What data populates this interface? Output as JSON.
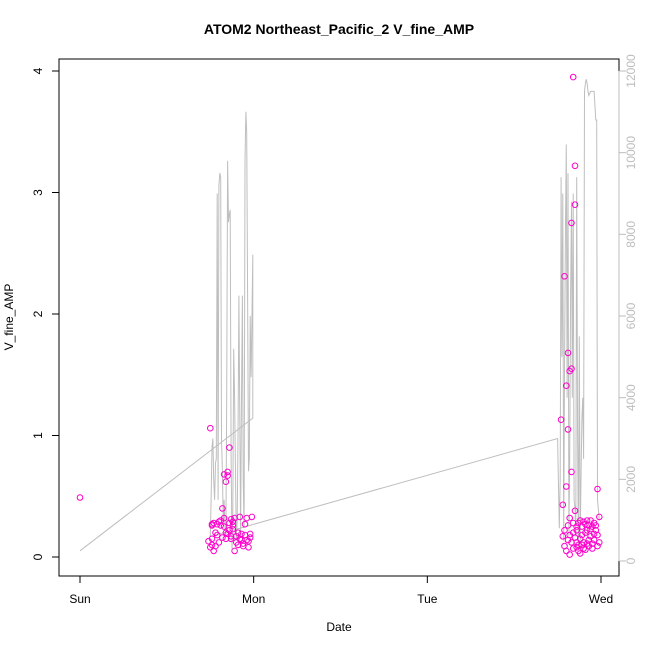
{
  "chart_data": {
    "type": "scatter",
    "title": "ATOM2 Northeast_Pacific_2 V_fine_AMP",
    "xlabel": "Date",
    "ylabel": "V_fine_AMP",
    "xlim": [
      0,
      3.1
    ],
    "ylim": [
      0,
      4.1
    ],
    "x_ticks": [
      {
        "value": 0,
        "label": "Sun"
      },
      {
        "value": 1,
        "label": "Mon"
      },
      {
        "value": 2,
        "label": "Tue"
      },
      {
        "value": 3,
        "label": "Wed"
      }
    ],
    "y_ticks": [
      0,
      1,
      2,
      3,
      4
    ],
    "y2_ticks": [
      0,
      2000,
      4000,
      6000,
      8000,
      10000,
      12000
    ],
    "y2lim": [
      0,
      12200
    ],
    "colors": {
      "points": "#ff00cc",
      "line": "#bebebe",
      "right_axis": "#bdbdbd"
    },
    "series": [
      {
        "type": "points",
        "x": [
          0.0,
          0.74,
          0.75,
          0.75,
          0.76,
          0.76,
          0.76,
          0.76,
          0.77,
          0.77,
          0.78,
          0.78,
          0.79,
          0.79,
          0.8,
          0.8,
          0.81,
          0.81,
          0.82,
          0.82,
          0.83,
          0.83,
          0.83,
          0.84,
          0.84,
          0.84,
          0.85,
          0.85,
          0.85,
          0.86,
          0.86,
          0.86,
          0.87,
          0.87,
          0.87,
          0.88,
          0.88,
          0.88,
          0.89,
          0.89,
          0.9,
          0.9,
          0.91,
          0.91,
          0.92,
          0.92,
          0.93,
          0.93,
          0.94,
          0.94,
          0.95,
          0.95,
          0.96,
          0.96,
          0.97,
          0.97,
          0.98,
          0.98,
          0.99,
          2.77,
          2.78,
          2.78,
          2.79,
          2.79,
          2.79,
          2.8,
          2.8,
          2.8,
          2.81,
          2.81,
          2.81,
          2.81,
          2.82,
          2.82,
          2.82,
          2.82,
          2.83,
          2.83,
          2.83,
          2.83,
          2.84,
          2.84,
          2.84,
          2.84,
          2.85,
          2.85,
          2.85,
          2.85,
          2.86,
          2.86,
          2.86,
          2.86,
          2.87,
          2.87,
          2.87,
          2.88,
          2.88,
          2.88,
          2.89,
          2.89,
          2.89,
          2.9,
          2.9,
          2.9,
          2.91,
          2.91,
          2.91,
          2.92,
          2.92,
          2.92,
          2.93,
          2.93,
          2.93,
          2.94,
          2.94,
          2.94,
          2.95,
          2.95,
          2.95,
          2.96,
          2.96,
          2.96,
          2.97,
          2.97,
          2.98,
          2.98,
          2.98,
          2.99,
          2.99
        ],
        "y": [
          0.49,
          0.13,
          1.06,
          0.08,
          0.27,
          0.15,
          0.1,
          0.26,
          0.28,
          0.05,
          0.2,
          0.09,
          0.18,
          0.27,
          0.29,
          0.12,
          0.26,
          0.3,
          0.4,
          0.16,
          0.32,
          0.25,
          0.68,
          0.62,
          0.2,
          0.15,
          0.7,
          0.67,
          0.19,
          0.22,
          0.28,
          0.9,
          0.31,
          0.17,
          0.15,
          0.26,
          0.29,
          0.23,
          0.05,
          0.32,
          0.12,
          0.17,
          0.1,
          0.2,
          0.33,
          0.15,
          0.14,
          0.19,
          0.11,
          0.09,
          0.18,
          0.27,
          0.14,
          0.32,
          0.08,
          0.13,
          0.16,
          0.19,
          0.33,
          1.13,
          0.43,
          0.17,
          2.31,
          0.22,
          0.09,
          1.41,
          0.58,
          0.05,
          1.68,
          1.05,
          0.14,
          0.26,
          1.53,
          0.32,
          0.02,
          0.18,
          2.75,
          1.55,
          0.7,
          0.12,
          3.95,
          0.28,
          0.07,
          0.2,
          2.9,
          3.22,
          0.38,
          0.16,
          0.25,
          0.12,
          0.08,
          0.22,
          0.1,
          0.28,
          0.05,
          0.3,
          0.15,
          0.03,
          0.25,
          0.18,
          0.1,
          0.29,
          0.12,
          0.07,
          0.2,
          0.27,
          0.06,
          0.3,
          0.22,
          0.11,
          0.14,
          0.26,
          0.09,
          0.3,
          0.17,
          0.23,
          0.11,
          0.25,
          0.07,
          0.19,
          0.28,
          0.14,
          0.26,
          0.22,
          0.09,
          0.56,
          0.18,
          0.33,
          0.12
        ]
      },
      {
        "type": "line",
        "x": [
          0.0,
          0.995,
          0.995,
          0.985,
          0.98,
          0.975,
          0.97,
          0.965,
          0.96,
          0.955,
          0.95,
          0.945,
          0.94,
          0.935,
          0.93,
          0.925,
          0.92,
          0.915,
          0.91,
          0.905,
          0.9,
          0.89,
          0.885,
          0.88,
          0.875,
          0.87,
          0.865,
          0.86,
          0.855,
          0.85,
          0.845,
          0.84,
          0.835,
          0.83,
          0.825,
          0.82,
          0.815,
          0.81,
          0.805,
          0.8,
          0.795,
          0.79,
          0.785,
          0.78,
          0.775,
          0.77,
          0.765,
          0.76,
          0.755,
          0.75,
          2.75,
          2.76,
          2.765,
          2.77,
          2.775,
          2.78,
          2.785,
          2.79,
          2.795,
          2.8,
          2.805,
          2.81,
          2.815,
          2.82,
          2.825,
          2.83,
          2.835,
          2.84,
          2.845,
          2.85,
          2.855,
          2.86,
          2.865,
          2.87,
          2.875,
          2.88,
          2.885,
          2.89,
          2.895,
          2.9,
          2.905,
          2.91,
          2.915,
          2.92,
          2.925,
          2.93,
          2.94,
          2.95,
          2.96,
          2.97,
          2.975,
          2.98,
          2.99
        ],
        "y": [
          250,
          3500,
          7500,
          4500,
          6000,
          2500,
          2200,
          6500,
          10500,
          11000,
          9800,
          800,
          2000,
          6500,
          4000,
          600,
          3500,
          6500,
          3000,
          1000,
          500,
          4000,
          5200,
          1200,
          300,
          2600,
          8600,
          8500,
          8300,
          9800,
          4000,
          600,
          800,
          1500,
          900,
          2200,
          3000,
          9400,
          9500,
          9200,
          1500,
          9000,
          2500,
          2400,
          1500,
          2000,
          3000,
          2800,
          1500,
          600,
          3000,
          800,
          2000,
          9400,
          5000,
          9000,
          500,
          4600,
          8000,
          10200,
          4000,
          9500,
          600,
          2500,
          6500,
          8800,
          4000,
          9000,
          1500,
          1300,
          600,
          9400,
          3000,
          300,
          5500,
          500,
          2000,
          3500,
          4000,
          2500,
          11500,
          11700,
          11800,
          11700,
          11500,
          11400,
          11500,
          11500,
          11500,
          10800,
          10800,
          1500,
          1000
        ]
      }
    ]
  }
}
